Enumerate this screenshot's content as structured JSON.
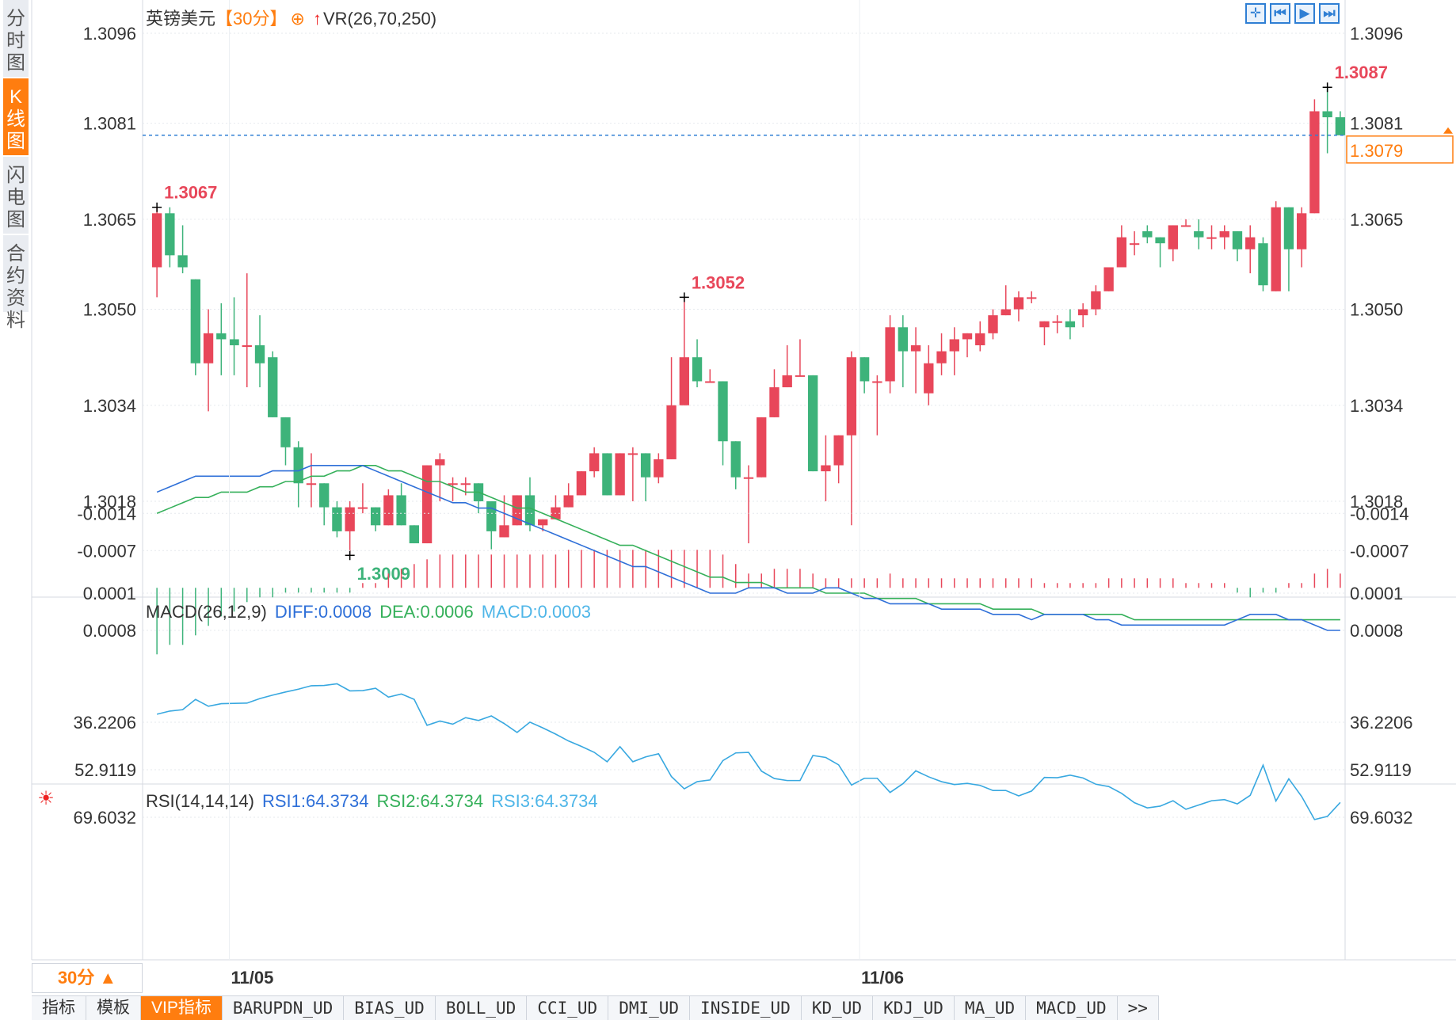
{
  "side_tabs": [
    "分时图",
    "K线图",
    "闪电图",
    "合约资料"
  ],
  "active_side_tab": 1,
  "header": {
    "symbol": "英镑美元",
    "period_tag": "【30分】",
    "overlay_label": "VR(26,70,250)"
  },
  "toolbar_icons": [
    "crosshair-icon",
    "step-back-icon",
    "play-icon",
    "step-forward-icon"
  ],
  "price_axis": {
    "labels": [
      "1.3096",
      "1.3081",
      "1.3065",
      "1.3050",
      "1.3034",
      "1.3018"
    ],
    "current_price": "1.3079",
    "high_mark": "1.3087",
    "marks": [
      {
        "text": "1.3067",
        "kind": "high"
      },
      {
        "text": "1.3009",
        "kind": "low"
      },
      {
        "text": "1.3052",
        "kind": "high"
      },
      {
        "text": "1.3087",
        "kind": "high"
      }
    ]
  },
  "time_axis": [
    "11/05",
    "11/06"
  ],
  "macd": {
    "title": "MACD(26,12,9)",
    "diff": "DIFF:0.0008",
    "dea": "DEA:0.0006",
    "macd": "MACD:0.0003",
    "axis": [
      "0.0008",
      "0.0001",
      "-0.0007",
      "-0.0014"
    ]
  },
  "rsi": {
    "title": "RSI(14,14,14)",
    "rsi1": "RSI1:64.3734",
    "rsi2": "RSI2:64.3734",
    "rsi3": "RSI3:64.3734",
    "axis": [
      "69.6032",
      "52.9119",
      "36.2206"
    ]
  },
  "period_selector": "30分 ▲",
  "indicator_tabs": [
    "指标",
    "模板",
    "VIP指标",
    "BARUPDN_UD",
    "BIAS_UD",
    "BOLL_UD",
    "CCI_UD",
    "DMI_UD",
    "INSIDE_UD",
    "KD_UD",
    "KDJ_UD",
    "MA_UD",
    "MACD_UD",
    ">>"
  ],
  "colors": {
    "up": "#e8475a",
    "down": "#3db37a",
    "accent": "#ff7d0f",
    "diff": "#2e6fd8",
    "dea": "#35b05a",
    "macd_label": "#4fb6e8",
    "rsi_line": "#38a8e0"
  },
  "chart_data": {
    "type": "candlestick",
    "candles": [
      [
        1.3057,
        1.3066,
        1.3067,
        1.3052
      ],
      [
        1.3066,
        1.3059,
        1.3067,
        1.3057
      ],
      [
        1.3059,
        1.3057,
        1.3064,
        1.3056
      ],
      [
        1.3055,
        1.3041,
        1.3055,
        1.3039
      ],
      [
        1.3041,
        1.3046,
        1.305,
        1.3033
      ],
      [
        1.3046,
        1.3045,
        1.3051,
        1.3039
      ],
      [
        1.3045,
        1.3044,
        1.3052,
        1.3039
      ],
      [
        1.3044,
        1.3044,
        1.3056,
        1.3037
      ],
      [
        1.3044,
        1.3041,
        1.3049,
        1.3037
      ],
      [
        1.3042,
        1.3032,
        1.3043,
        1.3032
      ],
      [
        1.3032,
        1.3027,
        1.3032,
        1.3024
      ],
      [
        1.3027,
        1.3021,
        1.3028,
        1.3017
      ],
      [
        1.3021,
        1.3021,
        1.3026,
        1.3017
      ],
      [
        1.3021,
        1.3017,
        1.3021,
        1.3014
      ],
      [
        1.3017,
        1.3013,
        1.3018,
        1.3012
      ],
      [
        1.3013,
        1.3017,
        1.3018,
        1.3009
      ],
      [
        1.3017,
        1.3017,
        1.3021,
        1.3016
      ],
      [
        1.3017,
        1.3014,
        1.3017,
        1.3013
      ],
      [
        1.3014,
        1.3019,
        1.302,
        1.3014
      ],
      [
        1.3019,
        1.3014,
        1.3021,
        1.3014
      ],
      [
        1.3014,
        1.3011,
        1.3014,
        1.3011
      ],
      [
        1.3011,
        1.3024,
        1.3024,
        1.3011
      ],
      [
        1.3024,
        1.3025,
        1.3026,
        1.3018
      ],
      [
        1.3021,
        1.3021,
        1.3022,
        1.3018
      ],
      [
        1.3021,
        1.3021,
        1.3022,
        1.3019
      ],
      [
        1.3021,
        1.3018,
        1.3021,
        1.3016
      ],
      [
        1.3018,
        1.3013,
        1.3018,
        1.301
      ],
      [
        1.3012,
        1.3014,
        1.3019,
        1.3012
      ],
      [
        1.3014,
        1.3019,
        1.3019,
        1.3014
      ],
      [
        1.3019,
        1.3014,
        1.3022,
        1.3013
      ],
      [
        1.3014,
        1.3015,
        1.3015,
        1.3013
      ],
      [
        1.3015,
        1.3017,
        1.3019,
        1.3015
      ],
      [
        1.3017,
        1.3019,
        1.3021,
        1.3017
      ],
      [
        1.3019,
        1.3023,
        1.3023,
        1.3019
      ],
      [
        1.3023,
        1.3026,
        1.3027,
        1.3022
      ],
      [
        1.3026,
        1.3019,
        1.3026,
        1.3019
      ],
      [
        1.3019,
        1.3026,
        1.3026,
        1.3019
      ],
      [
        1.3026,
        1.3026,
        1.3027,
        1.3018
      ],
      [
        1.3026,
        1.3022,
        1.3026,
        1.3018
      ],
      [
        1.3022,
        1.3025,
        1.3026,
        1.3021
      ],
      [
        1.3025,
        1.3034,
        1.3042,
        1.3025
      ],
      [
        1.3034,
        1.3042,
        1.3052,
        1.3034
      ],
      [
        1.3042,
        1.3038,
        1.3045,
        1.3037
      ],
      [
        1.3038,
        1.3038,
        1.304,
        1.3038
      ],
      [
        1.3038,
        1.3028,
        1.3038,
        1.3024
      ],
      [
        1.3028,
        1.3022,
        1.3028,
        1.302
      ],
      [
        1.3022,
        1.3022,
        1.3024,
        1.3011
      ],
      [
        1.3022,
        1.3032,
        1.3032,
        1.3022
      ],
      [
        1.3032,
        1.3037,
        1.304,
        1.3032
      ],
      [
        1.3037,
        1.3039,
        1.3044,
        1.3037
      ],
      [
        1.3039,
        1.3039,
        1.3045,
        1.3039
      ],
      [
        1.3039,
        1.3023,
        1.3039,
        1.3023
      ],
      [
        1.3023,
        1.3024,
        1.3029,
        1.3018
      ],
      [
        1.3024,
        1.3029,
        1.3029,
        1.3021
      ],
      [
        1.3029,
        1.3042,
        1.3043,
        1.3014
      ],
      [
        1.3042,
        1.3038,
        1.3042,
        1.3036
      ],
      [
        1.3038,
        1.3038,
        1.3039,
        1.3029
      ],
      [
        1.3038,
        1.3047,
        1.3049,
        1.3036
      ],
      [
        1.3047,
        1.3043,
        1.3049,
        1.3037
      ],
      [
        1.3043,
        1.3044,
        1.3047,
        1.3036
      ],
      [
        1.3036,
        1.3041,
        1.3044,
        1.3034
      ],
      [
        1.3041,
        1.3043,
        1.3046,
        1.3039
      ],
      [
        1.3043,
        1.3045,
        1.3047,
        1.3039
      ],
      [
        1.3045,
        1.3046,
        1.3046,
        1.3042
      ],
      [
        1.3044,
        1.3046,
        1.3048,
        1.3043
      ],
      [
        1.3046,
        1.3049,
        1.305,
        1.3045
      ],
      [
        1.3049,
        1.305,
        1.3054,
        1.3049
      ],
      [
        1.305,
        1.3052,
        1.3053,
        1.3048
      ],
      [
        1.3052,
        1.3052,
        1.3053,
        1.3051
      ],
      [
        1.3047,
        1.3048,
        1.3048,
        1.3044
      ],
      [
        1.3048,
        1.3048,
        1.3049,
        1.3046
      ],
      [
        1.3048,
        1.3047,
        1.305,
        1.3045
      ],
      [
        1.3049,
        1.305,
        1.3051,
        1.3047
      ],
      [
        1.305,
        1.3053,
        1.3054,
        1.3049
      ],
      [
        1.3053,
        1.3057,
        1.3057,
        1.3053
      ],
      [
        1.3057,
        1.3062,
        1.3064,
        1.3059
      ],
      [
        1.3061,
        1.3061,
        1.3063,
        1.3059
      ],
      [
        1.3063,
        1.3062,
        1.3064,
        1.3061
      ],
      [
        1.3062,
        1.3061,
        1.3062,
        1.3057
      ],
      [
        1.306,
        1.3064,
        1.3064,
        1.3058
      ],
      [
        1.3064,
        1.3064,
        1.3065,
        1.3064
      ],
      [
        1.3063,
        1.3062,
        1.3065,
        1.306
      ],
      [
        1.3062,
        1.3062,
        1.3064,
        1.306
      ],
      [
        1.3062,
        1.3063,
        1.3064,
        1.306
      ],
      [
        1.3063,
        1.306,
        1.3063,
        1.3058
      ],
      [
        1.306,
        1.3062,
        1.3064,
        1.3056
      ],
      [
        1.3061,
        1.3054,
        1.3062,
        1.3053
      ],
      [
        1.3053,
        1.3067,
        1.3068,
        1.3053
      ],
      [
        1.3067,
        1.306,
        1.3067,
        1.3053
      ],
      [
        1.306,
        1.3066,
        1.3067,
        1.3057
      ],
      [
        1.3066,
        1.3083,
        1.3085,
        1.3066
      ],
      [
        1.3083,
        1.3082,
        1.3087,
        1.3076
      ],
      [
        1.3082,
        1.3079,
        1.3083,
        1.3079
      ]
    ],
    "macd_hist": [
      -0.0014,
      -0.0012,
      -0.0012,
      -0.001,
      -0.0008,
      -0.0006,
      -0.0005,
      -0.0003,
      -0.0002,
      -0.0002,
      -0.0001,
      -0.0001,
      -0.0001,
      -0.0001,
      -0.0001,
      -0.0001,
      0.0001,
      0.0001,
      0.0003,
      0.0004,
      0.0005,
      0.0006,
      0.0007,
      0.0007,
      0.0007,
      0.0007,
      0.0007,
      0.0007,
      0.0007,
      0.0007,
      0.0007,
      0.0007,
      0.0008,
      0.0008,
      0.0008,
      0.0008,
      0.0008,
      0.0008,
      0.0008,
      0.0008,
      0.0008,
      0.0008,
      0.0008,
      0.0008,
      0.0007,
      0.0005,
      0.0003,
      0.0003,
      0.0004,
      0.0004,
      0.0004,
      0.0003,
      0.0002,
      0.0002,
      0.0002,
      0.0002,
      0.0002,
      0.0003,
      0.0002,
      0.0002,
      0.0002,
      0.0002,
      0.0002,
      0.0002,
      0.0002,
      0.0002,
      0.0002,
      0.0002,
      0.0002,
      0.0001,
      0.0001,
      0.0001,
      0.0001,
      0.0001,
      0.0002,
      0.0002,
      0.0002,
      0.0002,
      0.0002,
      0.0002,
      0.0001,
      0.0001,
      0.0001,
      0.0001,
      -0.0001,
      -0.0002,
      -0.0001,
      -0.0001,
      0.0001,
      0.0001,
      0.0003,
      0.0004,
      0.0003
    ],
    "diff": [
      -0.0018,
      -0.0019,
      -0.002,
      -0.0021,
      -0.0021,
      -0.0021,
      -0.0021,
      -0.0021,
      -0.0021,
      -0.0022,
      -0.0022,
      -0.0022,
      -0.0023,
      -0.0023,
      -0.0023,
      -0.0023,
      -0.0023,
      -0.0022,
      -0.0021,
      -0.002,
      -0.0019,
      -0.0018,
      -0.0017,
      -0.0016,
      -0.0016,
      -0.0015,
      -0.0015,
      -0.0014,
      -0.0013,
      -0.0012,
      -0.0011,
      -0.001,
      -0.0009,
      -0.0008,
      -0.0007,
      -0.0006,
      -0.0005,
      -0.0004,
      -0.0004,
      -0.0003,
      -0.0002,
      -0.0001,
      0.0,
      0.0001,
      0.0001,
      0.0001,
      0.0,
      0.0,
      0.0,
      0.0001,
      0.0001,
      0.0001,
      0.0,
      0.0,
      0.0001,
      0.0002,
      0.0002,
      0.0003,
      0.0003,
      0.0003,
      0.0003,
      0.0004,
      0.0004,
      0.0004,
      0.0004,
      0.0005,
      0.0005,
      0.0005,
      0.0006,
      0.0005,
      0.0005,
      0.0005,
      0.0005,
      0.0006,
      0.0006,
      0.0007,
      0.0007,
      0.0007,
      0.0007,
      0.0007,
      0.0007,
      0.0007,
      0.0007,
      0.0007,
      0.0006,
      0.0005,
      0.0005,
      0.0005,
      0.0006,
      0.0006,
      0.0007,
      0.0008,
      0.0008
    ],
    "dea": [
      -0.0014,
      -0.0015,
      -0.0016,
      -0.0017,
      -0.0017,
      -0.0018,
      -0.0018,
      -0.0018,
      -0.0019,
      -0.0019,
      -0.002,
      -0.002,
      -0.0021,
      -0.0021,
      -0.0022,
      -0.0022,
      -0.0023,
      -0.0023,
      -0.0022,
      -0.0022,
      -0.0021,
      -0.002,
      -0.002,
      -0.0019,
      -0.0018,
      -0.0018,
      -0.0017,
      -0.0016,
      -0.0015,
      -0.0015,
      -0.0014,
      -0.0013,
      -0.0012,
      -0.0011,
      -0.001,
      -0.0009,
      -0.0008,
      -0.0008,
      -0.0007,
      -0.0006,
      -0.0005,
      -0.0004,
      -0.0003,
      -0.0002,
      -0.0002,
      -0.0001,
      -0.0001,
      -0.0001,
      0.0,
      0.0,
      0.0,
      0.0,
      0.0001,
      0.0001,
      0.0001,
      0.0001,
      0.0002,
      0.0002,
      0.0002,
      0.0002,
      0.0003,
      0.0003,
      0.0003,
      0.0003,
      0.0003,
      0.0004,
      0.0004,
      0.0004,
      0.0004,
      0.0005,
      0.0005,
      0.0005,
      0.0005,
      0.0005,
      0.0005,
      0.0005,
      0.0006,
      0.0006,
      0.0006,
      0.0006,
      0.0006,
      0.0006,
      0.0006,
      0.0006,
      0.0006,
      0.0006,
      0.0006,
      0.0006,
      0.0006,
      0.0006,
      0.0006,
      0.0006,
      0.0006
    ],
    "rsi": [
      33.4,
      32.3,
      31.8,
      28.2,
      30.6,
      29.7,
      29.6,
      29.5,
      27.9,
      26.7,
      25.6,
      24.6,
      23.4,
      23.3,
      22.7,
      25.2,
      25.1,
      24.3,
      27.4,
      26.3,
      28.2,
      37.3,
      35.8,
      36.9,
      34.6,
      35.6,
      34.0,
      36.7,
      39.8,
      36.2,
      38.2,
      40.4,
      42.8,
      44.7,
      46.8,
      50.1,
      44.8,
      50.1,
      48.4,
      47.3,
      55.3,
      59.6,
      57.1,
      56.5,
      49.7,
      47.0,
      46.8,
      53.4,
      56.0,
      56.7,
      56.7,
      47.9,
      48.6,
      51.2,
      58.3,
      55.9,
      55.9,
      60.9,
      57.8,
      53.3,
      55.4,
      57.1,
      58.1,
      57.7,
      58.4,
      60.2,
      60.2,
      62.1,
      60.4,
      55.6,
      55.7,
      54.8,
      55.8,
      58.0,
      58.8,
      61.2,
      64.5,
      66.3,
      65.7,
      63.8,
      66.8,
      65.3,
      63.8,
      63.4,
      64.9,
      61.9,
      51.3,
      63.9,
      56.1,
      62.3,
      70.4,
      69.3,
      64.4
    ]
  }
}
